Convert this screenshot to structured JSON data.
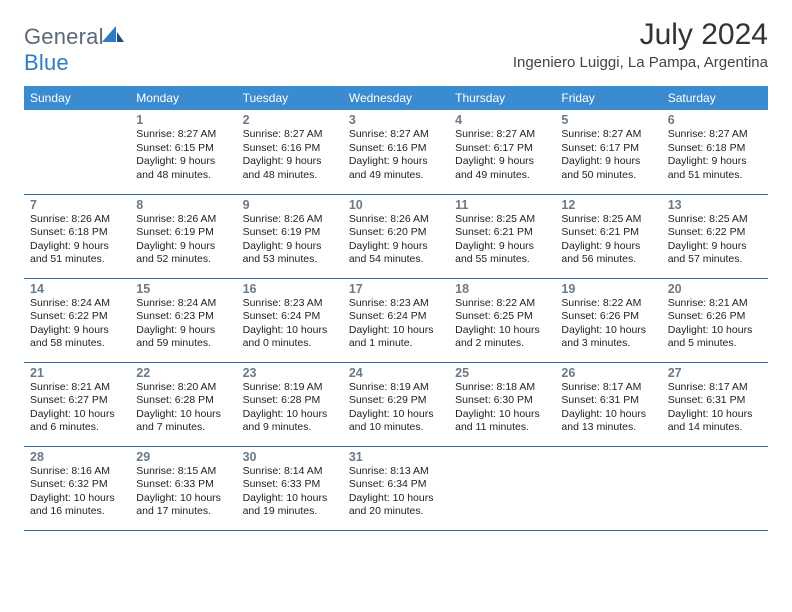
{
  "brand": {
    "name_part1": "General",
    "name_part2": "Blue"
  },
  "title": "July 2024",
  "location": "Ingeniero Luiggi, La Pampa, Argentina",
  "colors": {
    "header_bg": "#3a8bd0",
    "header_text": "#ffffff",
    "cell_border": "#2f6aa3",
    "daynum": "#6a7a88",
    "brand_gray": "#5a6a78",
    "brand_blue": "#2e7cc0"
  },
  "weekdays": [
    "Sunday",
    "Monday",
    "Tuesday",
    "Wednesday",
    "Thursday",
    "Friday",
    "Saturday"
  ],
  "weeks": [
    [
      {
        "n": "",
        "sunrise": "",
        "sunset": "",
        "daylight": ""
      },
      {
        "n": "1",
        "sunrise": "Sunrise: 8:27 AM",
        "sunset": "Sunset: 6:15 PM",
        "daylight": "Daylight: 9 hours and 48 minutes."
      },
      {
        "n": "2",
        "sunrise": "Sunrise: 8:27 AM",
        "sunset": "Sunset: 6:16 PM",
        "daylight": "Daylight: 9 hours and 48 minutes."
      },
      {
        "n": "3",
        "sunrise": "Sunrise: 8:27 AM",
        "sunset": "Sunset: 6:16 PM",
        "daylight": "Daylight: 9 hours and 49 minutes."
      },
      {
        "n": "4",
        "sunrise": "Sunrise: 8:27 AM",
        "sunset": "Sunset: 6:17 PM",
        "daylight": "Daylight: 9 hours and 49 minutes."
      },
      {
        "n": "5",
        "sunrise": "Sunrise: 8:27 AM",
        "sunset": "Sunset: 6:17 PM",
        "daylight": "Daylight: 9 hours and 50 minutes."
      },
      {
        "n": "6",
        "sunrise": "Sunrise: 8:27 AM",
        "sunset": "Sunset: 6:18 PM",
        "daylight": "Daylight: 9 hours and 51 minutes."
      }
    ],
    [
      {
        "n": "7",
        "sunrise": "Sunrise: 8:26 AM",
        "sunset": "Sunset: 6:18 PM",
        "daylight": "Daylight: 9 hours and 51 minutes."
      },
      {
        "n": "8",
        "sunrise": "Sunrise: 8:26 AM",
        "sunset": "Sunset: 6:19 PM",
        "daylight": "Daylight: 9 hours and 52 minutes."
      },
      {
        "n": "9",
        "sunrise": "Sunrise: 8:26 AM",
        "sunset": "Sunset: 6:19 PM",
        "daylight": "Daylight: 9 hours and 53 minutes."
      },
      {
        "n": "10",
        "sunrise": "Sunrise: 8:26 AM",
        "sunset": "Sunset: 6:20 PM",
        "daylight": "Daylight: 9 hours and 54 minutes."
      },
      {
        "n": "11",
        "sunrise": "Sunrise: 8:25 AM",
        "sunset": "Sunset: 6:21 PM",
        "daylight": "Daylight: 9 hours and 55 minutes."
      },
      {
        "n": "12",
        "sunrise": "Sunrise: 8:25 AM",
        "sunset": "Sunset: 6:21 PM",
        "daylight": "Daylight: 9 hours and 56 minutes."
      },
      {
        "n": "13",
        "sunrise": "Sunrise: 8:25 AM",
        "sunset": "Sunset: 6:22 PM",
        "daylight": "Daylight: 9 hours and 57 minutes."
      }
    ],
    [
      {
        "n": "14",
        "sunrise": "Sunrise: 8:24 AM",
        "sunset": "Sunset: 6:22 PM",
        "daylight": "Daylight: 9 hours and 58 minutes."
      },
      {
        "n": "15",
        "sunrise": "Sunrise: 8:24 AM",
        "sunset": "Sunset: 6:23 PM",
        "daylight": "Daylight: 9 hours and 59 minutes."
      },
      {
        "n": "16",
        "sunrise": "Sunrise: 8:23 AM",
        "sunset": "Sunset: 6:24 PM",
        "daylight": "Daylight: 10 hours and 0 minutes."
      },
      {
        "n": "17",
        "sunrise": "Sunrise: 8:23 AM",
        "sunset": "Sunset: 6:24 PM",
        "daylight": "Daylight: 10 hours and 1 minute."
      },
      {
        "n": "18",
        "sunrise": "Sunrise: 8:22 AM",
        "sunset": "Sunset: 6:25 PM",
        "daylight": "Daylight: 10 hours and 2 minutes."
      },
      {
        "n": "19",
        "sunrise": "Sunrise: 8:22 AM",
        "sunset": "Sunset: 6:26 PM",
        "daylight": "Daylight: 10 hours and 3 minutes."
      },
      {
        "n": "20",
        "sunrise": "Sunrise: 8:21 AM",
        "sunset": "Sunset: 6:26 PM",
        "daylight": "Daylight: 10 hours and 5 minutes."
      }
    ],
    [
      {
        "n": "21",
        "sunrise": "Sunrise: 8:21 AM",
        "sunset": "Sunset: 6:27 PM",
        "daylight": "Daylight: 10 hours and 6 minutes."
      },
      {
        "n": "22",
        "sunrise": "Sunrise: 8:20 AM",
        "sunset": "Sunset: 6:28 PM",
        "daylight": "Daylight: 10 hours and 7 minutes."
      },
      {
        "n": "23",
        "sunrise": "Sunrise: 8:19 AM",
        "sunset": "Sunset: 6:28 PM",
        "daylight": "Daylight: 10 hours and 9 minutes."
      },
      {
        "n": "24",
        "sunrise": "Sunrise: 8:19 AM",
        "sunset": "Sunset: 6:29 PM",
        "daylight": "Daylight: 10 hours and 10 minutes."
      },
      {
        "n": "25",
        "sunrise": "Sunrise: 8:18 AM",
        "sunset": "Sunset: 6:30 PM",
        "daylight": "Daylight: 10 hours and 11 minutes."
      },
      {
        "n": "26",
        "sunrise": "Sunrise: 8:17 AM",
        "sunset": "Sunset: 6:31 PM",
        "daylight": "Daylight: 10 hours and 13 minutes."
      },
      {
        "n": "27",
        "sunrise": "Sunrise: 8:17 AM",
        "sunset": "Sunset: 6:31 PM",
        "daylight": "Daylight: 10 hours and 14 minutes."
      }
    ],
    [
      {
        "n": "28",
        "sunrise": "Sunrise: 8:16 AM",
        "sunset": "Sunset: 6:32 PM",
        "daylight": "Daylight: 10 hours and 16 minutes."
      },
      {
        "n": "29",
        "sunrise": "Sunrise: 8:15 AM",
        "sunset": "Sunset: 6:33 PM",
        "daylight": "Daylight: 10 hours and 17 minutes."
      },
      {
        "n": "30",
        "sunrise": "Sunrise: 8:14 AM",
        "sunset": "Sunset: 6:33 PM",
        "daylight": "Daylight: 10 hours and 19 minutes."
      },
      {
        "n": "31",
        "sunrise": "Sunrise: 8:13 AM",
        "sunset": "Sunset: 6:34 PM",
        "daylight": "Daylight: 10 hours and 20 minutes."
      },
      {
        "n": "",
        "sunrise": "",
        "sunset": "",
        "daylight": ""
      },
      {
        "n": "",
        "sunrise": "",
        "sunset": "",
        "daylight": ""
      },
      {
        "n": "",
        "sunrise": "",
        "sunset": "",
        "daylight": ""
      }
    ]
  ]
}
